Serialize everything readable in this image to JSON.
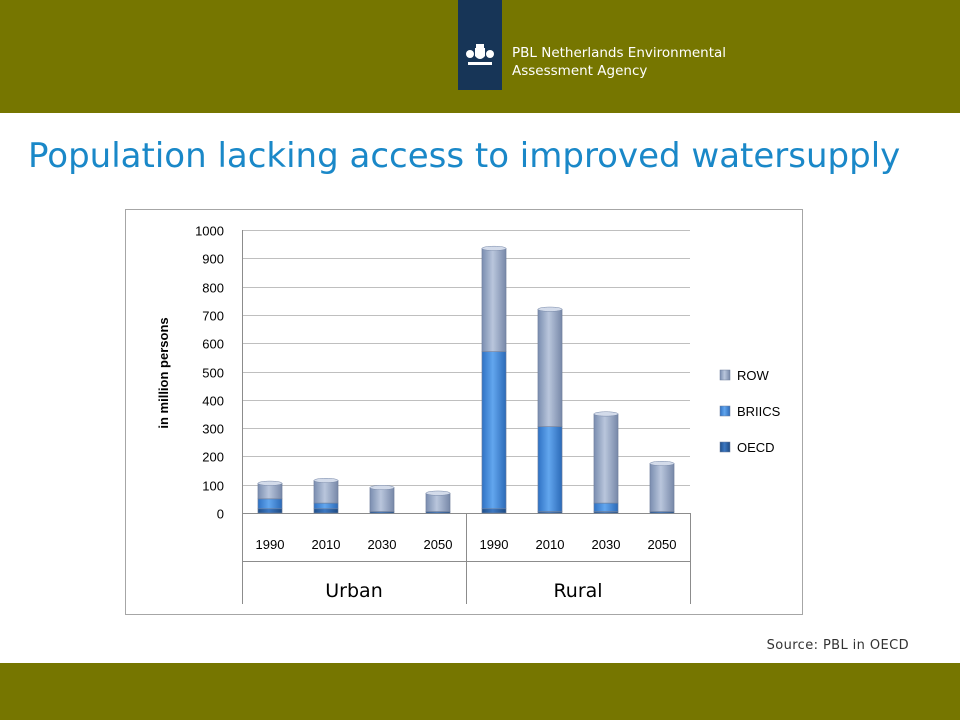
{
  "header": {
    "org_line1": "PBL Netherlands Environmental",
    "org_line2": "Assessment Agency",
    "logo_icon": "royal-coat-of-arms-icon"
  },
  "slide": {
    "title": "Population lacking access to improved watersupply",
    "source": "Source: PBL in OECD"
  },
  "colors": {
    "bar_olive": "#767600",
    "navy": "#173557",
    "title_blue": "#1a88c8",
    "row": "#8ea0bf",
    "briics": "#3f86d9",
    "oecd": "#2b5d9b"
  },
  "chart_data": {
    "type": "bar",
    "stacked": true,
    "ylabel": "in million persons",
    "ylim": [
      0,
      1000
    ],
    "yticks": [
      0,
      100,
      200,
      300,
      400,
      500,
      600,
      700,
      800,
      900,
      1000
    ],
    "categories": [
      "1990",
      "2010",
      "2030",
      "2050",
      "1990",
      "2010",
      "2030",
      "2050"
    ],
    "groups": [
      {
        "label": "Urban",
        "start": 0,
        "count": 4
      },
      {
        "label": "Rural",
        "start": 4,
        "count": 4
      }
    ],
    "series": [
      {
        "name": "OECD",
        "values": [
          15,
          15,
          5,
          5,
          15,
          5,
          5,
          5
        ]
      },
      {
        "name": "BRIICS",
        "values": [
          35,
          20,
          0,
          0,
          555,
          300,
          30,
          0
        ]
      },
      {
        "name": "ROW",
        "values": [
          55,
          80,
          85,
          65,
          365,
          415,
          315,
          170
        ]
      }
    ],
    "legend_position": "right",
    "grid": true
  }
}
